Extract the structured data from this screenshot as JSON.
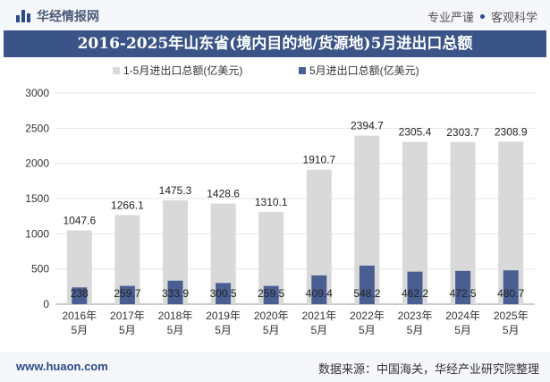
{
  "header": {
    "brand_name": "华经情报网",
    "slogan_left": "专业严谨",
    "slogan_right": "客观科学"
  },
  "title": "2016-2025年山东省(境内目的地/货源地)5月进出口总额",
  "footer": {
    "website": "www.huaon.com",
    "source": "数据来源：中国海关，华经产业研究院整理"
  },
  "colors": {
    "series1": "#d9d9d9",
    "series2": "#4a5f91",
    "title_bg": "#3b5487"
  },
  "chart_data": {
    "type": "bar",
    "categories": [
      [
        "2016年",
        "5月"
      ],
      [
        "2017年",
        "5月"
      ],
      [
        "2018年",
        "5月"
      ],
      [
        "2019年",
        "5月"
      ],
      [
        "2020年",
        "5月"
      ],
      [
        "2021年",
        "5月"
      ],
      [
        "2022年",
        "5月"
      ],
      [
        "2023年",
        "5月"
      ],
      [
        "2024年",
        "5月"
      ],
      [
        "2025年",
        "5月"
      ]
    ],
    "series": [
      {
        "name": "1-5月进出口总额(亿美元)",
        "values": [
          1047.6,
          1266.1,
          1475.3,
          1428.6,
          1310.1,
          1910.7,
          2394.7,
          2305.4,
          2303.7,
          2308.9
        ],
        "labels": [
          "1047.6",
          "1266.1",
          "1475.3",
          "1428.6",
          "1310.1",
          "1910.7",
          "2394.7",
          "2305.4",
          "2303.7",
          "2308.9"
        ]
      },
      {
        "name": "5月进出口总额(亿美元)",
        "values": [
          238,
          259.7,
          333.9,
          300.5,
          259.5,
          409.4,
          548.2,
          462.2,
          472.5,
          480.7
        ],
        "labels": [
          "238",
          "259.7",
          "333.9",
          "300.5",
          "259.5",
          "409.4",
          "548.2",
          "462.2",
          "472.5",
          "480.7"
        ]
      }
    ],
    "ylim": [
      0,
      3000
    ],
    "yticks": [
      {
        "value": 0,
        "label": "0"
      },
      {
        "value": 500,
        "label": "500"
      },
      {
        "value": 1000,
        "label": "1000"
      },
      {
        "value": 1500,
        "label": "1500"
      },
      {
        "value": 2000,
        "label": "2000"
      },
      {
        "value": 2500,
        "label": "2500"
      },
      {
        "value": 3000,
        "label": "3000"
      }
    ],
    "grid": true,
    "legend_position": "top-center"
  }
}
